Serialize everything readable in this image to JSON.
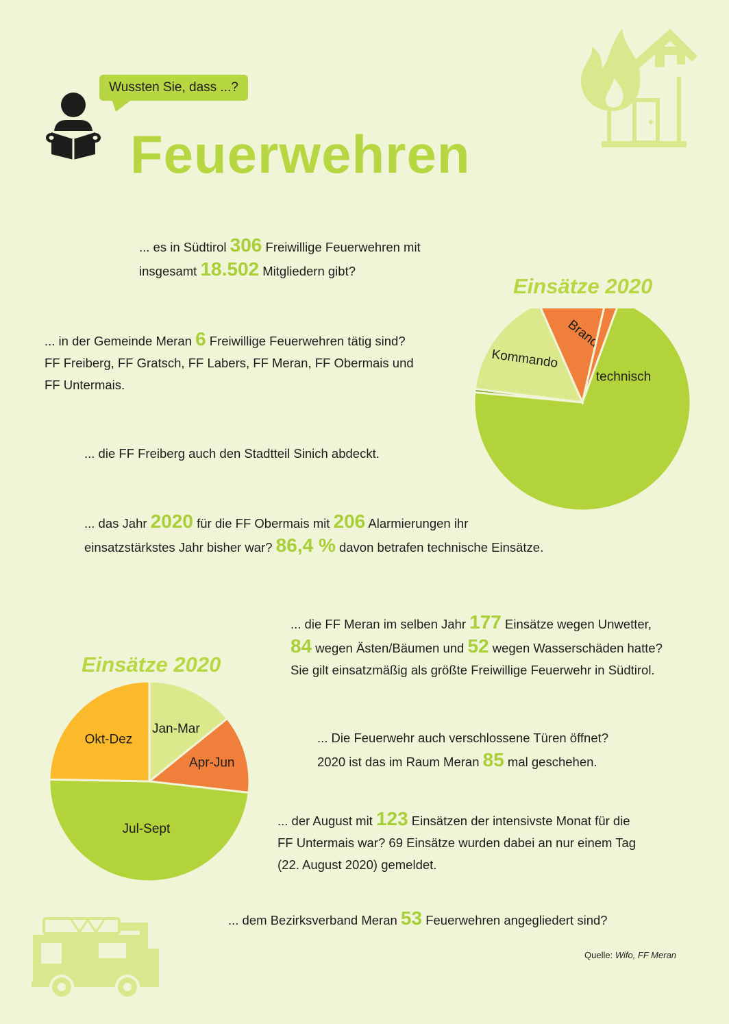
{
  "header": {
    "bubble_text": "Wussten Sie, dass ...?",
    "title": "Feuerwehren"
  },
  "facts": {
    "f1": {
      "a": "... es in Südtirol ",
      "n1": "306",
      "b": " Freiwillige Feuerwehren mit",
      "c": "insgesamt ",
      "n2": "18.502",
      "d": " Mitgliedern gibt?"
    },
    "f2": {
      "a": "... in der Gemeinde Meran ",
      "n1": "6",
      "b": " Freiwillige Feuerwehren tätig sind?",
      "c": "FF Freiberg, FF Gratsch, FF Labers, FF Meran, FF Obermais und",
      "d": "FF Untermais."
    },
    "f3": {
      "a": "... die FF Freiberg auch den Stadtteil Sinich abdeckt."
    },
    "f4": {
      "a": "... das Jahr ",
      "n1": "2020",
      "b": " für die FF Obermais mit ",
      "n2": "206",
      "c": " Alarmierungen ihr",
      "d": "einsatzstärkstes Jahr bisher war? ",
      "n3": "86,4 %",
      "e": " davon betrafen technische Einsätze."
    },
    "f5": {
      "a": "... die FF Meran im selben Jahr ",
      "n1": "177",
      "b": " Einsätze wegen Unwetter,",
      "n2": "84",
      "c": " wegen Ästen/Bäumen und ",
      "n3": "52",
      "d": " wegen Wasserschäden hatte?",
      "e": "Sie gilt einsatzmäßig als größte Freiwillige Feuerwehr in Südtirol."
    },
    "f6": {
      "a": "... Die Feuerwehr auch verschlossene Türen öffnet?",
      "b": "2020 ist das im Raum Meran ",
      "n1": "85",
      "c": " mal geschehen."
    },
    "f7": {
      "a": "... der August mit ",
      "n1": "123",
      "b": " Einsätzen der intensivste Monat für die",
      "c": "FF Untermais war? 69 Einsätze wurden dabei an nur einem Tag",
      "d": "(22. August 2020) gemeldet."
    },
    "f8": {
      "a": "... dem Bezirksverband Meran ",
      "n1": "53",
      "b": " Feuerwehren angegliedert sind?"
    }
  },
  "source": {
    "label": "Quelle: ",
    "value": "Wifo, FF Meran"
  },
  "chart_data": [
    {
      "type": "pie",
      "title": "Einsätze 2020",
      "labels": [
        "technisch",
        "",
        "Kommando",
        "Brand",
        ""
      ],
      "values": [
        70.9,
        0.5,
        16.4,
        10.2,
        2.0
      ],
      "colors": [
        "#b3d33a",
        "#7ea52c",
        "#dce88c",
        "#ef7f3b",
        "#ef7f3b"
      ]
    },
    {
      "type": "pie",
      "title": "Einsätze 2020",
      "labels": [
        "Jan-Mar",
        "Apr-Jun",
        "Jul-Sept",
        "Okt-Dez"
      ],
      "values": [
        14.2,
        12.6,
        48.5,
        24.7
      ],
      "colors": [
        "#dce88c",
        "#ef7f3b",
        "#b3d33a",
        "#fbb92c"
      ]
    }
  ],
  "icons": [
    "reader-icon",
    "house-fire-icon",
    "fire-truck-icon"
  ],
  "colors": {
    "accent": "#b6d741",
    "background": "#f1f5d8",
    "orange": "#ef7f3b",
    "yellow": "#fbb92c"
  }
}
